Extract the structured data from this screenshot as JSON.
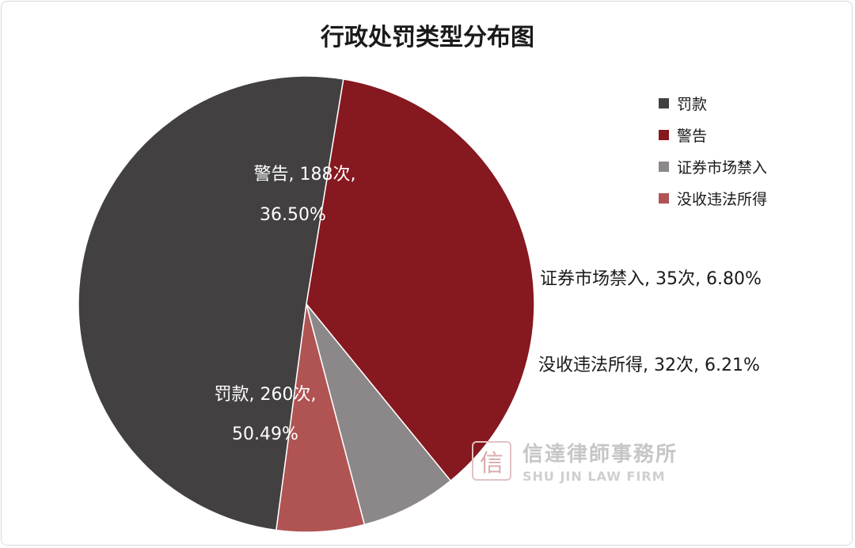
{
  "chart_data": {
    "type": "pie",
    "title": "行政处罚类型分布图",
    "slices": [
      {
        "name": "罚款",
        "count": 260,
        "unit": "次",
        "percent": "50.49%",
        "value": 50.49,
        "color": "#434041"
      },
      {
        "name": "警告",
        "count": 188,
        "unit": "次",
        "percent": "36.50%",
        "value": 36.5,
        "color": "#86181f"
      },
      {
        "name": "证券市场禁入",
        "count": 35,
        "unit": "次",
        "percent": "6.80%",
        "value": 6.8,
        "color": "#8c8788"
      },
      {
        "name": "没收违法所得",
        "count": 32,
        "unit": "次",
        "percent": "6.21%",
        "value": 6.21,
        "color": "#b05353"
      }
    ],
    "data_labels": {
      "fakuan_line1": "罚款, 260次,",
      "fakuan_line2": "50.49%",
      "jinggao_line1": "警告, 188次,",
      "jinggao_line2": "36.50%",
      "jinru": "证券市场禁入, 35次, 6.80%",
      "moshou": "没收违法所得, 32次, 6.21%"
    },
    "legend": {
      "position": "right",
      "items": [
        "罚款",
        "警告",
        "证券市场禁入",
        "没收违法所得"
      ]
    }
  },
  "watermark": {
    "seal": "信",
    "name_cn": "信達律師事務所",
    "name_en": "SHU JIN LAW FIRM"
  }
}
